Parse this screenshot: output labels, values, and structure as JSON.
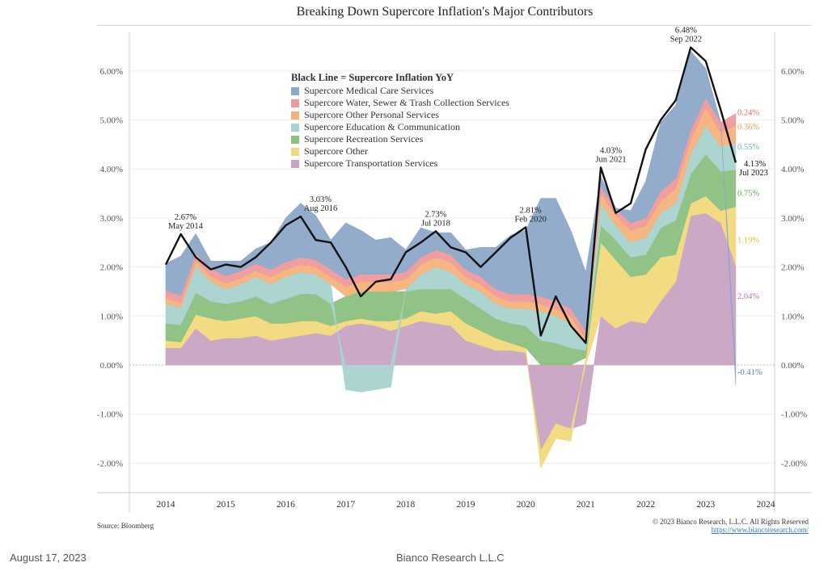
{
  "page": {
    "footer_date": "August 17, 2023",
    "footer_company": "Bianco Research L.L.C",
    "source": "Source: Bloomberg",
    "copyright": "© 2023 Bianco Research, L.L.C. All Rights Reserved",
    "url": "https://www.biancoresearch.com/"
  },
  "chart_data": {
    "type": "area",
    "title": "Breaking Down Supercore Inflation's Major Contributors",
    "xlabel": "",
    "ylabel": "",
    "ylim": [
      -2.5,
      6.5
    ],
    "xlim": [
      2013.85,
      2024.1
    ],
    "yticks": [
      -2,
      -1,
      0,
      1,
      2,
      3,
      4,
      5,
      6
    ],
    "ytick_labels": [
      "-2.00%",
      "-1.00%",
      "0.00%",
      "1.00%",
      "2.00%",
      "3.00%",
      "4.00%",
      "5.00%",
      "6.00%"
    ],
    "xticks": [
      2014,
      2015,
      2016,
      2017,
      2018,
      2019,
      2020,
      2021,
      2022,
      2023,
      2024
    ],
    "xtick_labels": [
      "2014",
      "2015",
      "2016",
      "2017",
      "2018",
      "2019",
      "2020",
      "2021",
      "2022",
      "2023",
      "2024"
    ],
    "grid": true,
    "legend_position": "top-center",
    "legend_title": "Black Line = Supercore Inflation YoY",
    "stacked": true,
    "x": [
      2014.0,
      2014.25,
      2014.5,
      2014.75,
      2015.0,
      2015.25,
      2015.5,
      2015.75,
      2016.0,
      2016.25,
      2016.5,
      2016.75,
      2017.0,
      2017.25,
      2017.5,
      2017.75,
      2018.0,
      2018.25,
      2018.5,
      2018.75,
      2019.0,
      2019.25,
      2019.5,
      2019.75,
      2020.0,
      2020.25,
      2020.5,
      2020.75,
      2021.0,
      2021.25,
      2021.5,
      2021.75,
      2022.0,
      2022.25,
      2022.5,
      2022.75,
      2023.0,
      2023.25,
      2023.5
    ],
    "series": [
      {
        "name": "Supercore Transportation Services",
        "color": "#c9a3c4",
        "values": [
          0.35,
          0.35,
          0.75,
          0.5,
          0.55,
          0.55,
          0.6,
          0.5,
          0.55,
          0.6,
          0.65,
          0.6,
          0.8,
          0.85,
          0.8,
          0.7,
          0.8,
          0.9,
          0.85,
          0.8,
          0.5,
          0.4,
          0.3,
          0.3,
          0.25,
          -1.75,
          -1.2,
          -1.3,
          -1.2,
          1.0,
          0.75,
          0.9,
          0.85,
          1.3,
          1.7,
          3.05,
          3.1,
          2.9,
          2.04
        ]
      },
      {
        "name": "Supercore Other",
        "color": "#f2d97c",
        "values": [
          0.15,
          0.12,
          0.28,
          0.45,
          0.35,
          0.4,
          0.4,
          0.35,
          0.3,
          0.3,
          0.25,
          0.2,
          0.1,
          0.1,
          0.1,
          0.2,
          0.15,
          0.2,
          0.2,
          0.3,
          0.35,
          0.3,
          0.25,
          0.15,
          0.1,
          -0.35,
          -0.3,
          -0.25,
          0.15,
          1.5,
          1.4,
          0.9,
          1.0,
          0.9,
          0.55,
          0.25,
          0.35,
          0.25,
          1.19
        ]
      },
      {
        "name": "Supercore Recreation Services",
        "color": "#8cc07f",
        "values": [
          0.35,
          0.35,
          0.45,
          0.35,
          0.35,
          0.35,
          0.4,
          0.4,
          0.5,
          0.55,
          0.55,
          0.45,
          0.5,
          0.55,
          0.6,
          0.6,
          0.55,
          0.45,
          0.5,
          0.45,
          0.5,
          0.45,
          0.4,
          0.4,
          0.45,
          0.5,
          0.45,
          0.35,
          0.15,
          0.35,
          0.4,
          0.4,
          0.4,
          0.6,
          0.7,
          0.6,
          0.85,
          0.8,
          0.75
        ]
      },
      {
        "name": "Supercore Education & Communication",
        "color": "#a8d3d0",
        "values": [
          0.4,
          0.35,
          0.55,
          0.4,
          0.3,
          0.35,
          0.4,
          0.4,
          0.45,
          0.45,
          0.4,
          0.4,
          -0.5,
          -0.55,
          -0.5,
          -0.45,
          0.05,
          0.3,
          0.45,
          0.35,
          0.3,
          0.35,
          0.3,
          0.3,
          0.35,
          0.6,
          0.55,
          0.5,
          0.15,
          0.45,
          0.3,
          0.3,
          0.35,
          0.3,
          0.35,
          0.4,
          0.6,
          0.5,
          0.55
        ]
      },
      {
        "name": "Supercore Other Personal Services",
        "color": "#f4b27a",
        "values": [
          0.12,
          0.1,
          0.1,
          0.12,
          0.12,
          0.12,
          0.12,
          0.15,
          0.15,
          0.15,
          0.15,
          0.15,
          0.2,
          0.2,
          0.2,
          0.2,
          0.2,
          0.2,
          0.2,
          0.2,
          0.15,
          0.15,
          0.15,
          0.15,
          0.15,
          0.15,
          0.15,
          0.15,
          0.1,
          0.2,
          0.2,
          0.25,
          0.25,
          0.25,
          0.3,
          0.3,
          0.35,
          0.3,
          0.36
        ]
      },
      {
        "name": "Supercore Water, Sewer & Trash Collection Services",
        "color": "#ee9a9a",
        "values": [
          0.15,
          0.15,
          0.15,
          0.15,
          0.15,
          0.15,
          0.15,
          0.15,
          0.15,
          0.15,
          0.15,
          0.15,
          0.15,
          0.15,
          0.15,
          0.15,
          0.15,
          0.15,
          0.15,
          0.15,
          0.15,
          0.15,
          0.15,
          0.15,
          0.15,
          0.15,
          0.15,
          0.15,
          0.15,
          0.15,
          0.15,
          0.15,
          0.15,
          0.2,
          0.2,
          0.2,
          0.2,
          0.2,
          0.24
        ]
      },
      {
        "name": "Supercore Medical Care Services",
        "color": "#8ea8c8",
        "values": [
          0.55,
          0.8,
          0.4,
          0.15,
          0.3,
          0.2,
          0.3,
          0.55,
          0.9,
          1.1,
          0.9,
          0.6,
          1.15,
          0.9,
          0.7,
          0.75,
          0.45,
          0.6,
          0.35,
          0.45,
          0.4,
          0.6,
          0.85,
          1.2,
          1.3,
          2.0,
          2.1,
          1.6,
          1.2,
          0.2,
          0.0,
          0.25,
          0.75,
          1.4,
          1.5,
          1.6,
          0.6,
          0.0,
          -0.41
        ]
      }
    ],
    "total_line": {
      "name": "Supercore Inflation YoY",
      "color": "#111111",
      "values": [
        2.05,
        2.67,
        2.2,
        1.95,
        2.05,
        2.0,
        2.2,
        2.5,
        2.85,
        3.03,
        2.55,
        2.5,
        2.0,
        1.4,
        1.7,
        1.75,
        2.3,
        2.5,
        2.73,
        2.4,
        2.3,
        2.0,
        2.3,
        2.6,
        2.81,
        0.6,
        1.4,
        0.8,
        0.45,
        4.03,
        3.1,
        3.3,
        4.4,
        5.0,
        5.4,
        6.48,
        6.2,
        5.2,
        4.13
      ]
    },
    "annotations": [
      {
        "x": 2014.33,
        "y": 2.67,
        "text": "2.67%",
        "sub": "May 2014"
      },
      {
        "x": 2016.58,
        "y": 3.03,
        "text": "3.03%",
        "sub": "Aug 2016"
      },
      {
        "x": 2018.5,
        "y": 2.73,
        "text": "2.73%",
        "sub": "Jul 2018"
      },
      {
        "x": 2020.08,
        "y": 2.81,
        "text": "2.81%",
        "sub": "Feb 2020"
      },
      {
        "x": 2021.42,
        "y": 4.03,
        "text": "4.03%",
        "sub": "Jun 2021"
      },
      {
        "x": 2022.67,
        "y": 6.48,
        "text": "6.48%",
        "sub": "Sep 2022"
      }
    ],
    "end_labels": [
      {
        "text": "0.24%",
        "color": "#e0676d",
        "y": 5.1
      },
      {
        "text": "0.36%",
        "color": "#ef9a4a",
        "y": 4.8
      },
      {
        "text": "0.55%",
        "color": "#6fb5b0",
        "y": 4.4
      },
      {
        "text": "4.13%",
        "sub": "Jul 2023",
        "color": "#111111",
        "y": 4.05
      },
      {
        "text": "0.75%",
        "color": "#5fa352",
        "y": 3.45
      },
      {
        "text": "1.19%",
        "color": "#e0b92e",
        "y": 2.5
      },
      {
        "text": "2.04%",
        "color": "#b57aae",
        "y": 1.35
      },
      {
        "text": "-0.41%",
        "color": "#5a80b0",
        "y": -0.2
      }
    ]
  }
}
